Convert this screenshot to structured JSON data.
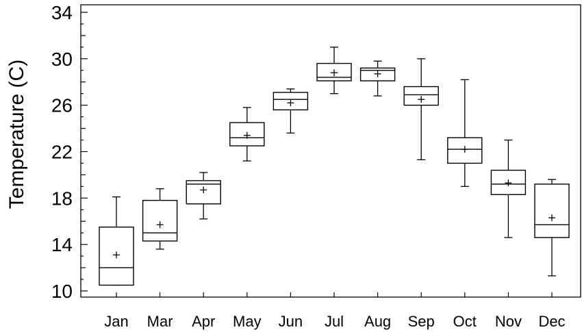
{
  "chart_data": {
    "type": "box",
    "title": "",
    "xlabel": "",
    "ylabel": "Temperature (C)",
    "ylim": [
      10,
      34
    ],
    "yticks": [
      10,
      14,
      18,
      22,
      26,
      30,
      34
    ],
    "categories": [
      "Jan",
      "Mar",
      "Apr",
      "May",
      "Jun",
      "Jul",
      "Aug",
      "Sep",
      "Oct",
      "Nov",
      "Dec"
    ],
    "boxes": [
      {
        "label": "Jan",
        "min": 10.5,
        "q1": 10.5,
        "median": 12.0,
        "q3": 15.5,
        "max": 18.1,
        "mean": 13.1
      },
      {
        "label": "Mar",
        "min": 13.6,
        "q1": 14.3,
        "median": 15.0,
        "q3": 17.8,
        "max": 18.8,
        "mean": 15.7
      },
      {
        "label": "Apr",
        "min": 16.2,
        "q1": 17.5,
        "median": 19.2,
        "q3": 19.5,
        "max": 20.2,
        "mean": 18.7
      },
      {
        "label": "May",
        "min": 21.2,
        "q1": 22.5,
        "median": 23.2,
        "q3": 24.5,
        "max": 25.8,
        "mean": 23.4
      },
      {
        "label": "Jun",
        "min": 23.6,
        "q1": 25.6,
        "median": 26.5,
        "q3": 27.1,
        "max": 27.4,
        "mean": 26.2
      },
      {
        "label": "Jul",
        "min": 27.0,
        "q1": 28.1,
        "median": 28.4,
        "q3": 29.6,
        "max": 31.0,
        "mean": 28.8
      },
      {
        "label": "Aug",
        "min": 26.8,
        "q1": 28.1,
        "median": 29.0,
        "q3": 29.2,
        "max": 29.8,
        "mean": 28.7
      },
      {
        "label": "Sep",
        "min": 21.3,
        "q1": 26.0,
        "median": 26.9,
        "q3": 27.6,
        "max": 30.0,
        "mean": 26.5
      },
      {
        "label": "Oct",
        "min": 19.0,
        "q1": 21.0,
        "median": 22.2,
        "q3": 23.2,
        "max": 28.2,
        "mean": 22.2
      },
      {
        "label": "Nov",
        "min": 14.6,
        "q1": 18.3,
        "median": 19.2,
        "q3": 20.4,
        "max": 23.0,
        "mean": 19.3
      },
      {
        "label": "Dec",
        "min": 11.3,
        "q1": 14.6,
        "median": 15.7,
        "q3": 19.2,
        "max": 19.6,
        "mean": 16.3
      }
    ],
    "grid": false,
    "legend": "none"
  }
}
